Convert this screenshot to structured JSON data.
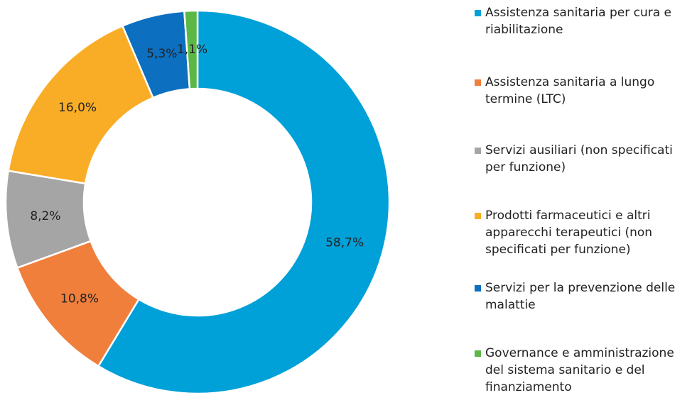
{
  "chart_data": {
    "type": "donut",
    "categories": [
      "Assistenza sanitaria per cura e riabilitazione",
      "Assistenza sanitaria  a lungo termine (LTC)",
      "Servizi ausiliari (non specificati per funzione)",
      "Prodotti farmaceutici e altri apparecchi terapeutici (non specificati per funzione)",
      "Servizi per la prevenzione delle malattie",
      "Governance e amministrazione del sistema sanitario e del finanziamento"
    ],
    "values": [
      58.7,
      10.8,
      8.2,
      16.0,
      5.3,
      1.1
    ],
    "value_labels": [
      "58,7%",
      "10,8%",
      "8,2%",
      "16,0%",
      "5,3%",
      "1,1%"
    ],
    "colors": [
      "#00a0d8",
      "#f07f3c",
      "#a5a5a5",
      "#f9ad26",
      "#0c6fbf",
      "#5cb846"
    ],
    "legend": "right"
  }
}
